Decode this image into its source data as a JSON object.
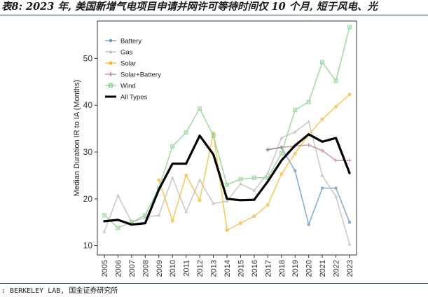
{
  "header": {
    "title": "表8: 2023 年, 美国新增气电项目申请并网许可等待时间仅 10 个月, 短于风电、光"
  },
  "footer": {
    "source": ": BERKELEY LAB, 国金证券研究所"
  },
  "colors": {
    "Battery": "#5b8fbe",
    "Gas": "#b8b8b8",
    "Solar": "#f2b829",
    "Solar+Battery": "#b97e77",
    "Wind": "#88cc8a",
    "All Types": "#000000",
    "plot_border": "#333333",
    "rule": "#1e3d73"
  },
  "chart_data": {
    "type": "line",
    "title": "",
    "xlabel": "",
    "ylabel": "Median Duration IR to IA (Months)",
    "x": [
      2005,
      2006,
      2007,
      2008,
      2009,
      2010,
      2011,
      2012,
      2013,
      2014,
      2015,
      2016,
      2017,
      2018,
      2019,
      2020,
      2021,
      2022,
      2023
    ],
    "xticklabels": [
      "2005",
      "2006",
      "2007",
      "2008",
      "2009",
      "2010",
      "2011",
      "2012",
      "2013",
      "2014",
      "2015",
      "2016",
      "2017",
      "2018",
      "2019",
      "2020",
      "2021",
      "2022",
      "2023"
    ],
    "ylim": [
      8,
      58
    ],
    "yticks": [
      10,
      20,
      30,
      40,
      50
    ],
    "yticklabels": [
      "10",
      "20",
      "30",
      "40",
      "50"
    ],
    "legend_position": "top-left",
    "series": [
      {
        "name": "Battery",
        "marker": "circle",
        "values": [
          null,
          null,
          null,
          null,
          null,
          null,
          null,
          null,
          null,
          null,
          null,
          null,
          30.5,
          31.0,
          26.0,
          14.5,
          22.3,
          22.3,
          15.0
        ]
      },
      {
        "name": "Gas",
        "marker": "triangle",
        "values": [
          13.0,
          20.7,
          15.0,
          16.0,
          16.5,
          24.5,
          17.2,
          24.0,
          19.0,
          19.5,
          23.2,
          21.8,
          25.5,
          33.0,
          34.3,
          36.5,
          25.0,
          20.5,
          10.3
        ]
      },
      {
        "name": "Solar",
        "marker": "square",
        "values": [
          null,
          null,
          null,
          null,
          24.0,
          15.3,
          25.0,
          19.7,
          34.0,
          13.3,
          14.8,
          16.3,
          18.7,
          25.3,
          29.7,
          33.7,
          37.0,
          39.7,
          42.3
        ]
      },
      {
        "name": "Solar+Battery",
        "marker": "plus",
        "values": [
          null,
          null,
          null,
          null,
          null,
          null,
          null,
          null,
          null,
          null,
          null,
          null,
          30.5,
          31.0,
          31.3,
          31.5,
          30.3,
          28.2,
          28.2
        ]
      },
      {
        "name": "Wind",
        "marker": "square-x",
        "values": [
          16.5,
          13.8,
          15.0,
          16.5,
          22.3,
          31.2,
          34.2,
          39.3,
          33.5,
          23.0,
          24.2,
          24.5,
          24.5,
          29.7,
          39.0,
          40.7,
          49.2,
          45.2,
          56.7
        ]
      },
      {
        "name": "All Types",
        "marker": "none",
        "values": [
          15.2,
          15.5,
          14.5,
          14.8,
          22.0,
          27.5,
          27.5,
          33.5,
          29.5,
          20.0,
          19.7,
          19.8,
          23.7,
          28.2,
          31.4,
          33.8,
          32.2,
          33.0,
          25.5
        ]
      }
    ]
  }
}
